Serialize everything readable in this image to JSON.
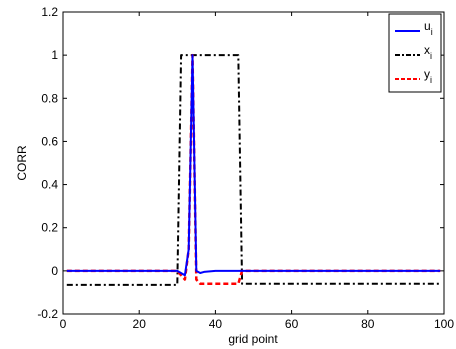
{
  "chart_data": {
    "type": "line",
    "xlabel": "grid point",
    "ylabel": "CORR",
    "xlim": [
      0,
      100
    ],
    "ylim": [
      -0.2,
      1.2
    ],
    "xticks": [
      "0",
      "20",
      "40",
      "60",
      "80",
      "100"
    ],
    "yticks": [
      "-0.2",
      "0",
      "0.2",
      "0.4",
      "0.6",
      "0.8",
      "1",
      "1.2"
    ],
    "grid": false,
    "legend_position": "top-right",
    "series": [
      {
        "name": "u",
        "subscript": "i",
        "color": "#0000ff",
        "style": "solid",
        "x": [
          1,
          30,
          32,
          33,
          34,
          35,
          36,
          37,
          40,
          46,
          47,
          60,
          80,
          97,
          99
        ],
        "y": [
          0.0,
          0.0,
          -0.02,
          0.1,
          1.0,
          0.0,
          -0.01,
          -0.005,
          0.0,
          0.0,
          0.0,
          0.0,
          0.0,
          0.0,
          0.0
        ]
      },
      {
        "name": "x",
        "subscript": "i",
        "color": "#000000",
        "style": "dashdot",
        "x": [
          1,
          30,
          31,
          46,
          47,
          99
        ],
        "y": [
          -0.065,
          -0.065,
          1.0,
          1.0,
          -0.06,
          -0.06
        ]
      },
      {
        "name": "y",
        "subscript": "i",
        "color": "#ff0000",
        "style": "dashed",
        "x": [
          1,
          30,
          32,
          33,
          34,
          35,
          36,
          37,
          46,
          47,
          99
        ],
        "y": [
          0.0,
          0.0,
          -0.04,
          0.1,
          1.0,
          -0.04,
          -0.06,
          -0.06,
          -0.06,
          0.0,
          0.0
        ]
      }
    ]
  }
}
